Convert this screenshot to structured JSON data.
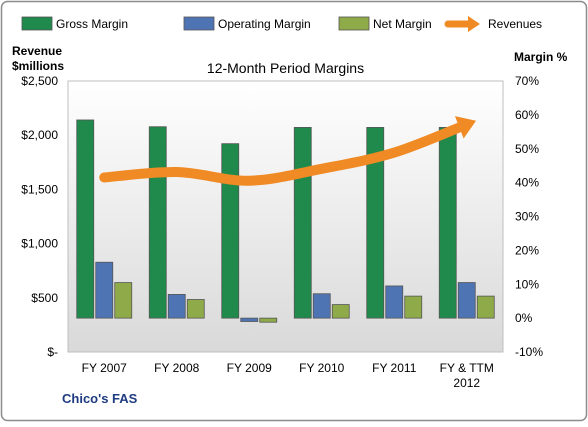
{
  "chart_data": {
    "type": "bar",
    "title": "12-Month Period Margins",
    "categories": [
      "FY 2007",
      "FY 2008",
      "FY 2009",
      "FY 2010",
      "FY 2011",
      "FY & TTM 2012"
    ],
    "series": [
      {
        "name": "Gross Margin",
        "kind": "bar",
        "axis": "right",
        "color": "#1f8a4c",
        "values": [
          58.5,
          56.5,
          51.5,
          56.3,
          56.3,
          56.3
        ]
      },
      {
        "name": "Operating Margin",
        "kind": "bar",
        "axis": "right",
        "color": "#4f74b3",
        "values": [
          16.5,
          7.0,
          -1.0,
          7.2,
          9.5,
          10.5
        ]
      },
      {
        "name": "Net Margin",
        "kind": "bar",
        "axis": "right",
        "color": "#8faa48",
        "values": [
          10.5,
          5.5,
          -1.2,
          4.0,
          6.5,
          6.5
        ]
      },
      {
        "name": "Revenues",
        "kind": "line",
        "axis": "left",
        "color": "#f08a24",
        "values": [
          1610,
          1660,
          1580,
          1690,
          1840,
          2100
        ]
      }
    ],
    "left_axis": {
      "label_line1": "Revenue",
      "label_line2": "$millions",
      "min": 0,
      "max": 2500,
      "ticks": [
        0,
        500,
        1000,
        1500,
        2000,
        2500
      ],
      "tick_labels": [
        "$-",
        "$500",
        "$1,000",
        "$1,500",
        "$2,000",
        "$2,500"
      ]
    },
    "right_axis": {
      "label": "Margin %",
      "min": -10,
      "max": 70,
      "ticks": [
        -10,
        0,
        10,
        20,
        30,
        40,
        50,
        60,
        70
      ],
      "tick_labels": [
        "-10%",
        "0%",
        "10%",
        "20%",
        "30%",
        "40%",
        "50%",
        "60%",
        "70%"
      ]
    },
    "category_labels": [
      [
        "FY 2007"
      ],
      [
        "FY 2008"
      ],
      [
        "FY 2009"
      ],
      [
        "FY 2010"
      ],
      [
        "FY 2011"
      ],
      [
        "FY & TTM",
        "2012"
      ]
    ],
    "legend_position": "top",
    "grid": false,
    "company_label": "Chico's FAS"
  }
}
